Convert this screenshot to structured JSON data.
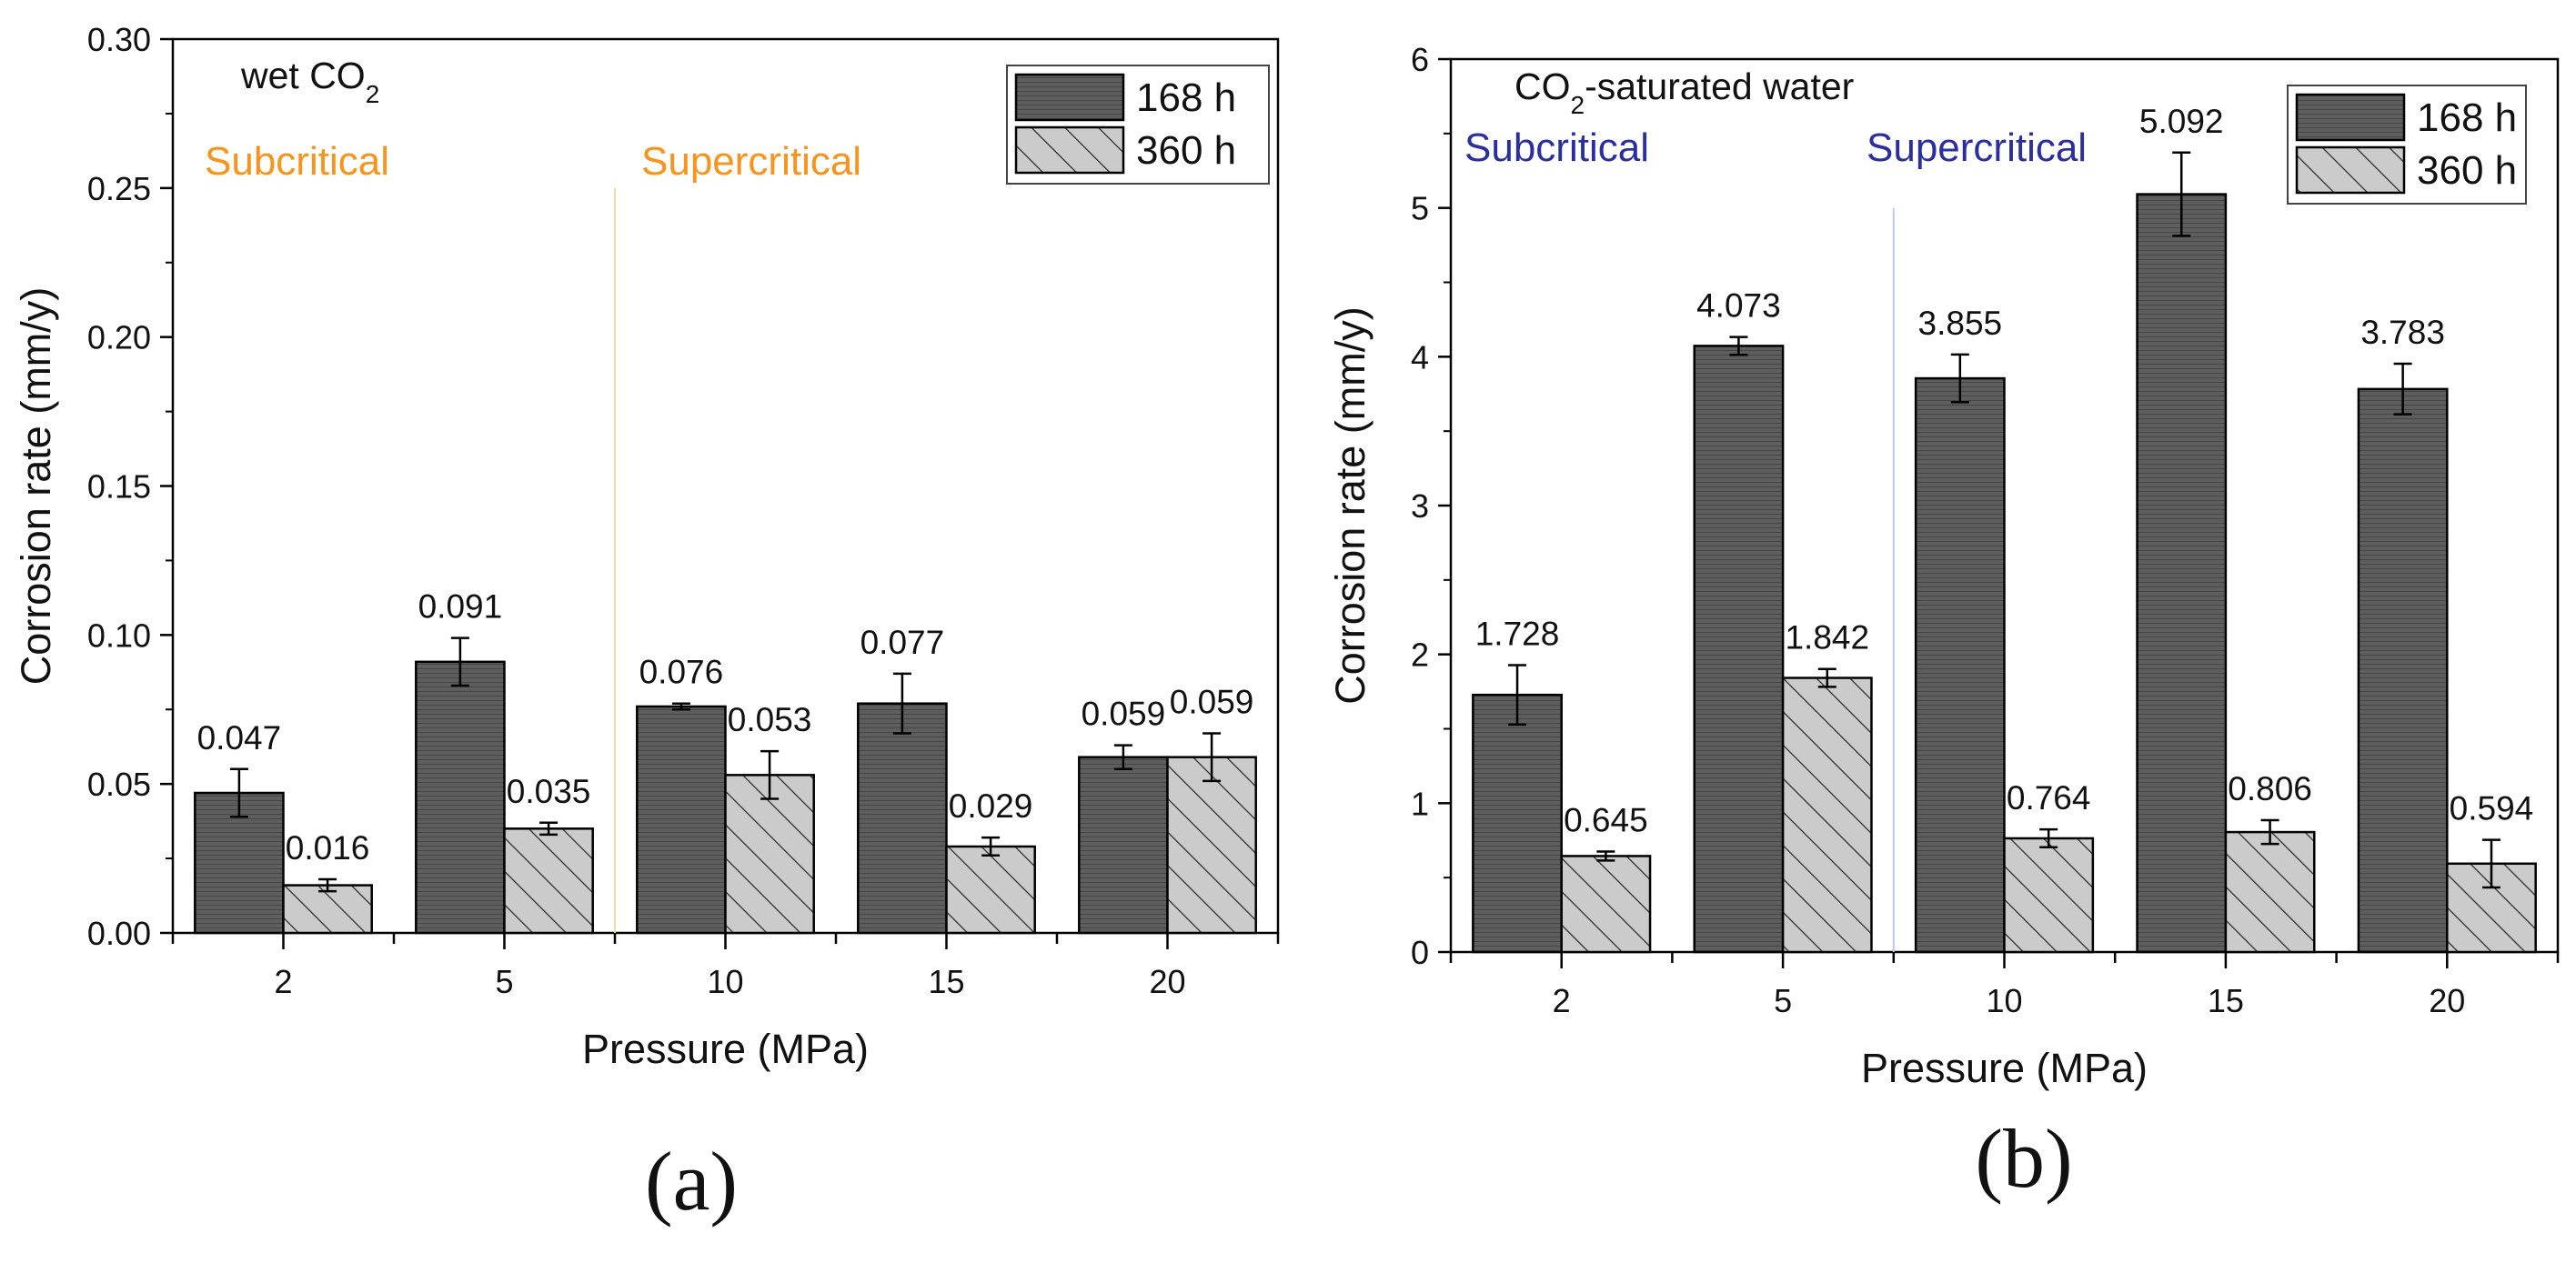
{
  "chart_data": [
    {
      "type": "bar",
      "panel_label": "(a)",
      "annotation": "wet CO2",
      "annotation_main": "wet CO",
      "annotation_sub": "2",
      "regime_labels": [
        "Subcritical",
        "Supercritical"
      ],
      "regime_color": "#f7941d",
      "xlabel": "Pressure (MPa)",
      "ylabel": "Corrosion rate (mm/y)",
      "categories": [
        "2",
        "5",
        "10",
        "15",
        "20"
      ],
      "ylim": [
        0,
        0.3
      ],
      "yticks": [
        "0.00",
        "0.05",
        "0.10",
        "0.15",
        "0.20",
        "0.25",
        "0.30"
      ],
      "series": [
        {
          "name": "168 h",
          "values": [
            0.047,
            0.091,
            0.076,
            0.077,
            0.059
          ],
          "errors": [
            0.008,
            0.008,
            0.001,
            0.01,
            0.004
          ],
          "labels": [
            "0.047",
            "0.091",
            "0.076",
            "0.077",
            "0.059"
          ]
        },
        {
          "name": "360 h",
          "values": [
            0.016,
            0.035,
            0.053,
            0.029,
            0.059
          ],
          "errors": [
            0.002,
            0.002,
            0.008,
            0.003,
            0.008
          ],
          "labels": [
            "0.016",
            "0.035",
            "0.053",
            "0.029",
            "0.059"
          ]
        }
      ],
      "legend": "top-right"
    },
    {
      "type": "bar",
      "panel_label": "(b)",
      "annotation": "CO2-saturated water",
      "annotation_main": "CO",
      "annotation_sub": "2",
      "annotation_rest": "-saturated water",
      "regime_labels": [
        "Subcritical",
        "Supercritical"
      ],
      "regime_color": "#2b2f9e",
      "xlabel": "Pressure (MPa)",
      "ylabel": "Corrosion rate (mm/y)",
      "categories": [
        "2",
        "5",
        "10",
        "15",
        "20"
      ],
      "ylim": [
        0,
        6
      ],
      "yticks": [
        "0",
        "1",
        "2",
        "3",
        "4",
        "5",
        "6"
      ],
      "series": [
        {
          "name": "168 h",
          "values": [
            1.728,
            4.073,
            3.855,
            5.092,
            3.783
          ],
          "errors": [
            0.2,
            0.06,
            0.16,
            0.28,
            0.17
          ],
          "labels": [
            "1.728",
            "4.073",
            "3.855",
            "5.092",
            "3.783"
          ]
        },
        {
          "name": "360 h",
          "values": [
            0.645,
            1.842,
            0.764,
            0.806,
            0.594
          ],
          "errors": [
            0.03,
            0.06,
            0.06,
            0.08,
            0.16
          ],
          "labels": [
            "0.645",
            "1.842",
            "0.764",
            "0.806",
            "0.594"
          ]
        }
      ],
      "legend": "top-right"
    }
  ]
}
